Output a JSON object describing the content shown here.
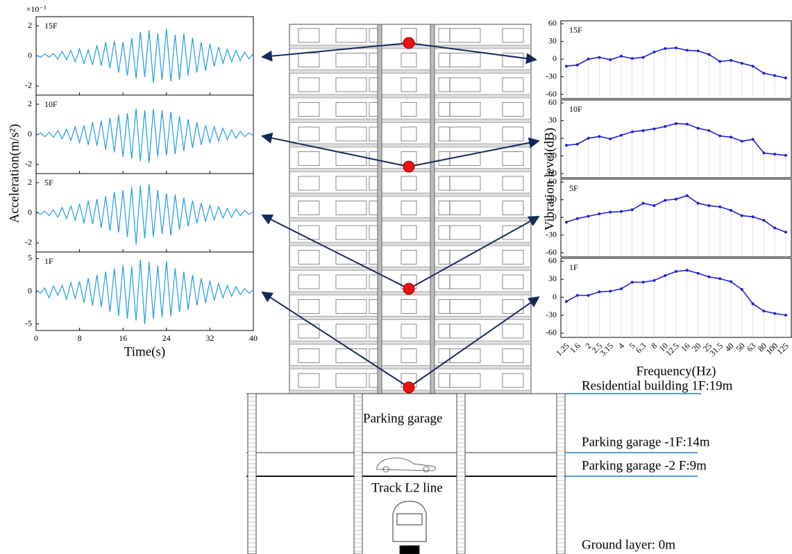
{
  "chart_data": [
    {
      "type": "line",
      "title": "15F",
      "y_multiplier": "×10⁻³",
      "color": "#1e9be6",
      "xlim": [
        0,
        40
      ],
      "ylim": [
        -2.6,
        2.6
      ],
      "yticks": [
        -2,
        0,
        2
      ],
      "x": [
        0,
        0.8,
        1.6,
        2.4,
        3.2,
        4,
        4.8,
        5.6,
        6.4,
        7.2,
        8,
        8.8,
        9.6,
        10.4,
        11.2,
        12,
        12.8,
        13.6,
        14.4,
        15.2,
        16,
        16.8,
        17.6,
        18.4,
        19.2,
        20,
        20.8,
        21.6,
        22.4,
        23.2,
        24,
        24.8,
        25.6,
        26.4,
        27.2,
        28,
        28.8,
        29.6,
        30.4,
        31.2,
        32,
        32.8,
        33.6,
        34.4,
        35.2,
        36,
        36.8,
        37.6,
        38.4,
        39.2,
        40
      ],
      "values": [
        0.05,
        -0.1,
        0.12,
        -0.08,
        0.15,
        -0.2,
        0.3,
        -0.25,
        0.35,
        -0.4,
        0.45,
        -0.5,
        0.4,
        -0.6,
        0.7,
        -0.65,
        0.9,
        -0.8,
        1.0,
        -1.1,
        0.9,
        -1.3,
        1.2,
        -1.5,
        1.6,
        -1.4,
        1.7,
        -1.8,
        1.5,
        -1.6,
        1.8,
        -1.7,
        1.4,
        -1.6,
        1.5,
        -1.3,
        1.2,
        -1.1,
        0.9,
        -1.0,
        0.8,
        -0.7,
        0.6,
        -0.5,
        0.45,
        -0.4,
        0.35,
        -0.3,
        0.25,
        -0.2,
        0.15
      ]
    },
    {
      "type": "line",
      "title": "10F",
      "color": "#1e9be6",
      "xlim": [
        0,
        40
      ],
      "ylim": [
        -2.6,
        2.6
      ],
      "yticks": [
        -2,
        0,
        2
      ],
      "x": [
        0,
        0.8,
        1.6,
        2.4,
        3.2,
        4,
        4.8,
        5.6,
        6.4,
        7.2,
        8,
        8.8,
        9.6,
        10.4,
        11.2,
        12,
        12.8,
        13.6,
        14.4,
        15.2,
        16,
        16.8,
        17.6,
        18.4,
        19.2,
        20,
        20.8,
        21.6,
        22.4,
        23.2,
        24,
        24.8,
        25.6,
        26.4,
        27.2,
        28,
        28.8,
        29.6,
        30.4,
        31.2,
        32,
        32.8,
        33.6,
        34.4,
        35.2,
        36,
        36.8,
        37.6,
        38.4,
        39.2,
        40
      ],
      "values": [
        -0.08,
        0.1,
        -0.15,
        0.12,
        -0.2,
        0.25,
        -0.3,
        0.35,
        -0.4,
        0.5,
        -0.55,
        0.6,
        -0.7,
        0.8,
        -0.75,
        0.9,
        -1.0,
        1.1,
        -1.2,
        1.3,
        -1.5,
        1.4,
        -1.6,
        1.7,
        -1.8,
        1.6,
        -1.9,
        1.7,
        -1.5,
        1.6,
        -1.4,
        1.5,
        -1.3,
        1.2,
        -1.1,
        1.0,
        -0.9,
        0.8,
        -0.7,
        0.6,
        -0.55,
        0.5,
        -0.45,
        0.4,
        -0.35,
        0.3,
        -0.25,
        0.2,
        -0.15,
        0.1,
        -0.08
      ]
    },
    {
      "type": "line",
      "title": "5F",
      "color": "#1e9be6",
      "xlim": [
        0,
        40
      ],
      "ylim": [
        -2.6,
        2.6
      ],
      "yticks": [
        -2,
        0,
        2
      ],
      "x": [
        0,
        0.8,
        1.6,
        2.4,
        3.2,
        4,
        4.8,
        5.6,
        6.4,
        7.2,
        8,
        8.8,
        9.6,
        10.4,
        11.2,
        12,
        12.8,
        13.6,
        14.4,
        15.2,
        16,
        16.8,
        17.6,
        18.4,
        19.2,
        20,
        20.8,
        21.6,
        22.4,
        23.2,
        24,
        24.8,
        25.6,
        26.4,
        27.2,
        28,
        28.8,
        29.6,
        30.4,
        31.2,
        32,
        32.8,
        33.6,
        34.4,
        35.2,
        36,
        36.8,
        37.6,
        38.4,
        39.2,
        40
      ],
      "values": [
        0.1,
        -0.12,
        0.1,
        -0.18,
        0.2,
        -0.3,
        0.35,
        -0.4,
        0.45,
        -0.5,
        0.6,
        -0.7,
        0.8,
        -0.75,
        0.9,
        -1.0,
        1.1,
        -1.2,
        1.4,
        -1.3,
        1.5,
        -1.6,
        1.7,
        -2.1,
        1.8,
        -1.7,
        1.9,
        -1.6,
        1.5,
        -1.4,
        1.3,
        -1.5,
        1.2,
        -1.1,
        1.0,
        -0.9,
        0.8,
        -0.7,
        0.65,
        -0.6,
        0.5,
        -0.45,
        0.4,
        -0.35,
        0.3,
        -0.3,
        0.25,
        -0.2,
        0.15,
        -0.1,
        0.08
      ]
    },
    {
      "type": "line",
      "title": "1F",
      "color": "#1e9be6",
      "x_label": "Time(s)",
      "y_label": "Acceleration(m/s²)",
      "xlim": [
        0,
        40
      ],
      "xticks": [
        0,
        8,
        16,
        24,
        32,
        40
      ],
      "ylim": [
        -6,
        6
      ],
      "yticks": [
        -5,
        0,
        5
      ],
      "x": [
        0,
        0.8,
        1.6,
        2.4,
        3.2,
        4,
        4.8,
        5.6,
        6.4,
        7.2,
        8,
        8.8,
        9.6,
        10.4,
        11.2,
        12,
        12.8,
        13.6,
        14.4,
        15.2,
        16,
        16.8,
        17.6,
        18.4,
        19.2,
        20,
        20.8,
        21.6,
        22.4,
        23.2,
        24,
        24.8,
        25.6,
        26.4,
        27.2,
        28,
        28.8,
        29.6,
        30.4,
        31.2,
        32,
        32.8,
        33.6,
        34.4,
        35.2,
        36,
        36.8,
        37.6,
        38.4,
        39.2,
        40
      ],
      "values": [
        0.2,
        -0.3,
        0.5,
        -1.0,
        0.8,
        -0.6,
        0.9,
        -1.2,
        1.3,
        -1.1,
        1.5,
        -1.8,
        2.0,
        -2.2,
        2.5,
        -2.4,
        3.0,
        -3.2,
        3.5,
        -3.8,
        4.0,
        -4.2,
        3.8,
        -4.5,
        4.8,
        -5.0,
        4.5,
        -4.2,
        3.9,
        -4.0,
        4.6,
        -3.8,
        3.5,
        -3.2,
        3.0,
        -2.8,
        2.5,
        -2.2,
        2.0,
        -1.8,
        1.6,
        -1.4,
        1.2,
        -1.0,
        0.9,
        -0.8,
        0.7,
        -0.5,
        0.4,
        -0.3,
        0.2
      ]
    },
    {
      "type": "line",
      "title": "15F",
      "color": "#1f1fd6",
      "ylim": [
        -67,
        65
      ],
      "yticks": [
        -60,
        -30,
        0,
        30,
        60
      ],
      "values": [
        -12,
        -10,
        0,
        3,
        -1,
        5,
        1,
        3,
        12,
        18,
        19,
        15,
        14,
        8,
        -4,
        -2,
        -7,
        -12,
        -24,
        -28,
        -32
      ]
    },
    {
      "type": "line",
      "title": "10F",
      "color": "#1f1fd6",
      "ylim": [
        -67,
        65
      ],
      "yticks": [
        -60,
        -30,
        0,
        30,
        60
      ],
      "values": [
        -12,
        -10,
        0,
        3,
        -1,
        5,
        11,
        13,
        16,
        20,
        25,
        24,
        17,
        13,
        4,
        2,
        -5,
        -2,
        -25,
        -27,
        -29
      ]
    },
    {
      "type": "line",
      "title": "5F",
      "color": "#1f1fd6",
      "ylim": [
        -67,
        65
      ],
      "yticks": [
        -60,
        -30,
        0,
        30,
        60
      ],
      "values": [
        -8,
        -2,
        2,
        6,
        9,
        10,
        13,
        24,
        20,
        29,
        31,
        37,
        24,
        20,
        18,
        12,
        3,
        1,
        -5,
        -18,
        -25
      ]
    },
    {
      "type": "line",
      "title": "1F",
      "color": "#1f1fd6",
      "x_label": "Frequency(Hz)",
      "y_label": "Vibration level(dB)",
      "ylim": [
        -67,
        65
      ],
      "yticks": [
        -60,
        -30,
        0,
        30,
        60
      ],
      "categories": [
        "1.25",
        "1.6",
        "2",
        "2.5",
        "3.15",
        "4",
        "5",
        "6.3",
        "8",
        "10",
        "12.5",
        "16",
        "20",
        "25",
        "31.5",
        "40",
        "50",
        "63",
        "80",
        "100",
        "125"
      ],
      "values": [
        -7,
        3,
        3,
        9,
        10,
        14,
        25,
        25,
        28,
        36,
        43,
        45,
        40,
        34,
        31,
        26,
        13,
        -11,
        -23,
        -27,
        -30
      ]
    }
  ],
  "diagram": {
    "garage": "Parking garage",
    "track": "Track L2 line",
    "levels": [
      "Residential building 1F:19m",
      "Parking garage -1F:14m",
      "Parking garage -2 F:9m",
      "Ground layer: 0m"
    ]
  }
}
